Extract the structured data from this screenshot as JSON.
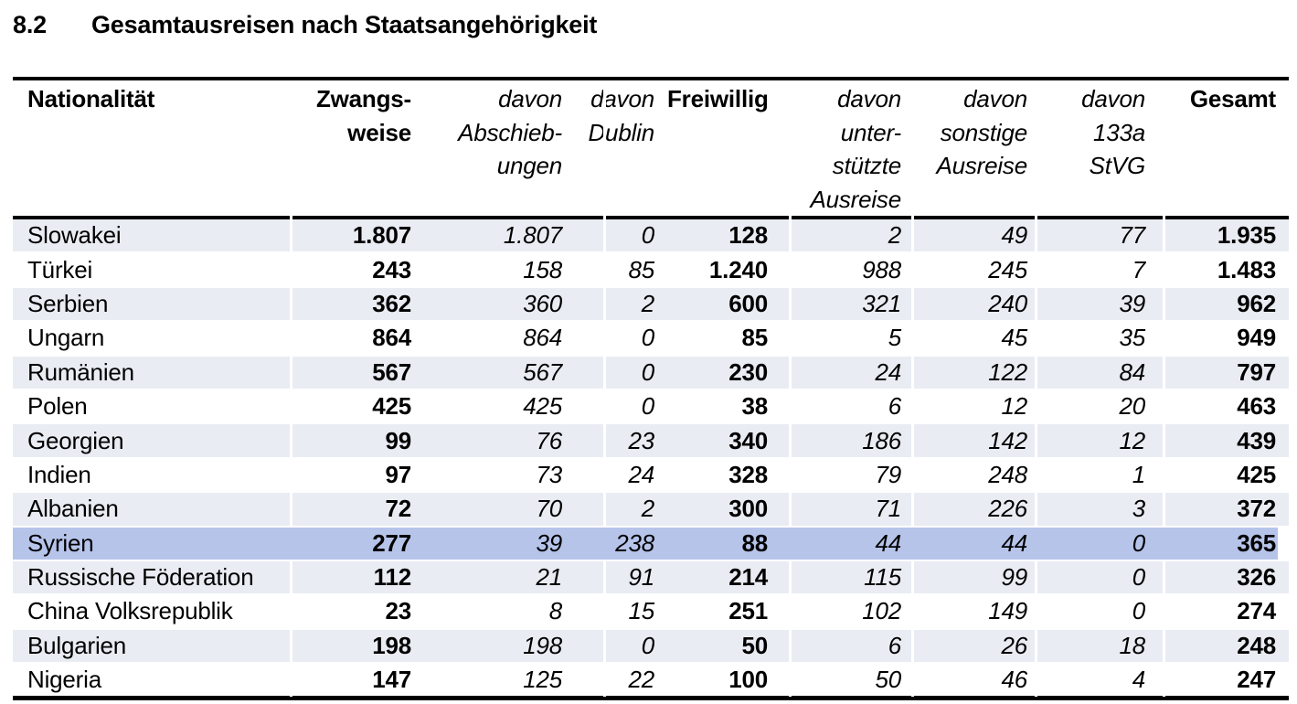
{
  "page": {
    "title_number": "8.2",
    "title_text": "Gesamtausreisen nach Staatsangehörigkeit"
  },
  "colors": {
    "row_shade": "#E9ECF3",
    "syrien_highlight": "#B6C4EA",
    "table_border": "#000000",
    "text": "#000000"
  },
  "table": {
    "columns": [
      {
        "id": "nationalitaet",
        "label": "Nationalität",
        "style": "bold",
        "align": "left"
      },
      {
        "id": "zwangsweise",
        "label": "Zwangs-\nweise",
        "style": "bold",
        "align": "right"
      },
      {
        "id": "davon-abschiebungen",
        "label": "davon\nAbschieb-\nungen",
        "style": "italic",
        "align": "right"
      },
      {
        "id": "davon-dublin",
        "label": "davon\nDublin",
        "style": "italic",
        "align": "right"
      },
      {
        "id": "freiwillig",
        "label": "Freiwillig",
        "style": "bold",
        "align": "right"
      },
      {
        "id": "davon-unterstuetzte-ausreise",
        "label": "davon\nunter-\nstützte\nAusreise",
        "style": "italic",
        "align": "right"
      },
      {
        "id": "davon-sonstige-ausreise",
        "label": "davon\nsonstige\nAusreise",
        "style": "italic",
        "align": "right"
      },
      {
        "id": "davon-133a-stvg",
        "label": "davon\n133a\nStVG",
        "style": "italic",
        "align": "right"
      },
      {
        "id": "gesamt",
        "label": "Gesamt",
        "style": "bold",
        "align": "right"
      }
    ],
    "rows": [
      {
        "cells": [
          "Slowakei",
          "1.807",
          "1.807",
          "0",
          "128",
          "2",
          "49",
          "77",
          "1.935"
        ],
        "shaded": true,
        "highlight": false
      },
      {
        "cells": [
          "Türkei",
          "243",
          "158",
          "85",
          "1.240",
          "988",
          "245",
          "7",
          "1.483"
        ],
        "shaded": false,
        "highlight": false
      },
      {
        "cells": [
          "Serbien",
          "362",
          "360",
          "2",
          "600",
          "321",
          "240",
          "39",
          "962"
        ],
        "shaded": true,
        "highlight": false
      },
      {
        "cells": [
          "Ungarn",
          "864",
          "864",
          "0",
          "85",
          "5",
          "45",
          "35",
          "949"
        ],
        "shaded": false,
        "highlight": false
      },
      {
        "cells": [
          "Rumänien",
          "567",
          "567",
          "0",
          "230",
          "24",
          "122",
          "84",
          "797"
        ],
        "shaded": true,
        "highlight": false
      },
      {
        "cells": [
          "Polen",
          "425",
          "425",
          "0",
          "38",
          "6",
          "12",
          "20",
          "463"
        ],
        "shaded": false,
        "highlight": false
      },
      {
        "cells": [
          "Georgien",
          "99",
          "76",
          "23",
          "340",
          "186",
          "142",
          "12",
          "439"
        ],
        "shaded": true,
        "highlight": false
      },
      {
        "cells": [
          "Indien",
          "97",
          "73",
          "24",
          "328",
          "79",
          "248",
          "1",
          "425"
        ],
        "shaded": false,
        "highlight": false
      },
      {
        "cells": [
          "Albanien",
          "72",
          "70",
          "2",
          "300",
          "71",
          "226",
          "3",
          "372"
        ],
        "shaded": true,
        "highlight": false
      },
      {
        "cells": [
          "Syrien",
          "277",
          "39",
          "238",
          "88",
          "44",
          "44",
          "0",
          "365"
        ],
        "shaded": false,
        "highlight": true
      },
      {
        "cells": [
          "Russische Föderation",
          "112",
          "21",
          "91",
          "214",
          "115",
          "99",
          "0",
          "326"
        ],
        "shaded": true,
        "highlight": false
      },
      {
        "cells": [
          "China Volksrepublik",
          "23",
          "8",
          "15",
          "251",
          "102",
          "149",
          "0",
          "274"
        ],
        "shaded": false,
        "highlight": false
      },
      {
        "cells": [
          "Bulgarien",
          "198",
          "198",
          "0",
          "50",
          "6",
          "26",
          "18",
          "248"
        ],
        "shaded": true,
        "highlight": false
      },
      {
        "cells": [
          "Nigeria",
          "147",
          "125",
          "22",
          "100",
          "50",
          "46",
          "4",
          "247"
        ],
        "shaded": false,
        "highlight": false
      }
    ]
  }
}
